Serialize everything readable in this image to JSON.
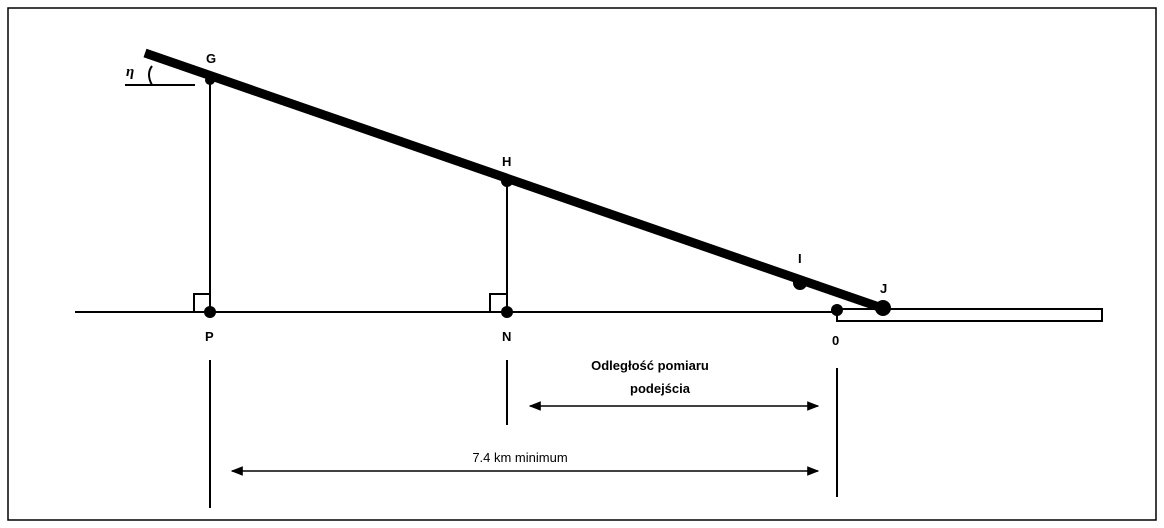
{
  "points": {
    "G": "G",
    "H": "H",
    "I": "I",
    "J": "J",
    "P": "P",
    "N": "N",
    "O": "0"
  },
  "angle": "η",
  "approach_distance": [
    "Odległość pomiaru",
    "podejścia"
  ],
  "minimum_distance": "7.4 km minimum"
}
